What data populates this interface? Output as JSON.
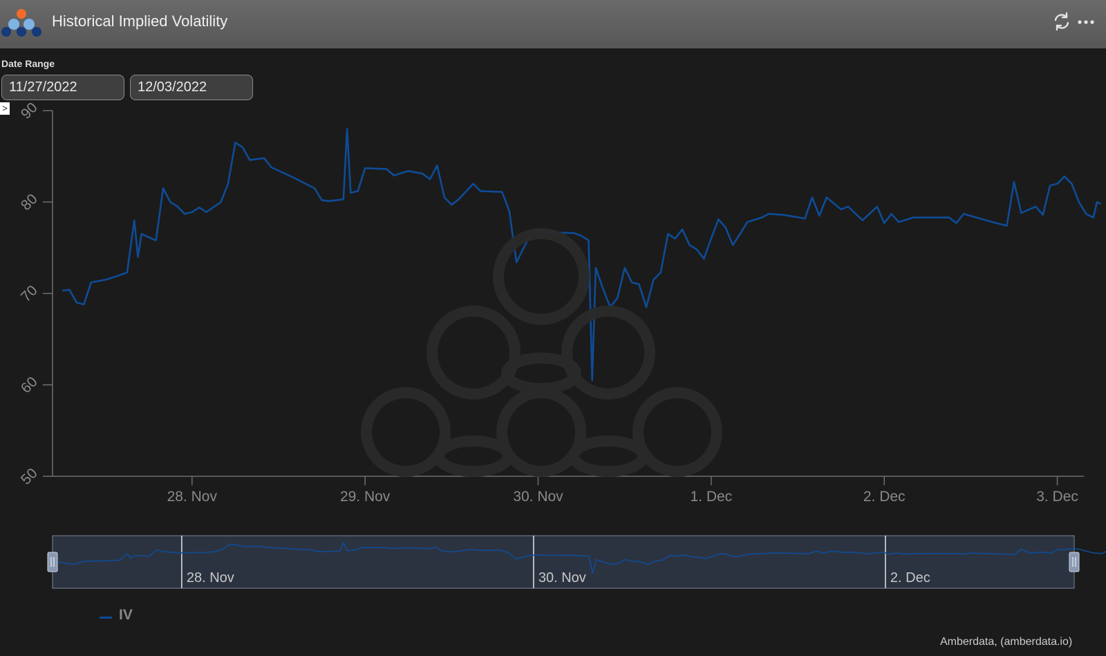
{
  "header": {
    "title": "Historical Implied Volatility",
    "icons": [
      "logo-icon",
      "refresh-icon",
      "more-icon"
    ]
  },
  "date_range": {
    "label": "Date Range",
    "from": "11/27/2022",
    "to": "12/03/2022"
  },
  "colors": {
    "series": "#0e4c97",
    "background": "#1b1b1b",
    "axis": "#6e6e6e",
    "navigator_fill": "#2c3340"
  },
  "chart_data": {
    "type": "line",
    "title": "",
    "xlabel": "",
    "ylabel": "",
    "ylim": [
      50,
      90
    ],
    "yticks": [
      50,
      60,
      70,
      80,
      90
    ],
    "xlim": [
      "2022-11-27T06:00",
      "2022-12-03T01:00"
    ],
    "xtick_labels": [
      "28. Nov",
      "29. Nov",
      "30. Nov",
      "1. Dec",
      "2. Dec",
      "3. Dec"
    ],
    "grid": false,
    "legend_position": "bottom-left",
    "series": [
      {
        "name": "IV",
        "points": [
          [
            "2022-11-27T06:00",
            70.3
          ],
          [
            "2022-11-27T07:00",
            70.4
          ],
          [
            "2022-11-27T08:00",
            69.0
          ],
          [
            "2022-11-27T09:00",
            68.8
          ],
          [
            "2022-11-27T10:00",
            71.2
          ],
          [
            "2022-11-27T12:00",
            71.5
          ],
          [
            "2022-11-27T14:00",
            72.0
          ],
          [
            "2022-11-27T15:00",
            72.3
          ],
          [
            "2022-11-27T16:00",
            78.0
          ],
          [
            "2022-11-27T16:30",
            74.0
          ],
          [
            "2022-11-27T17:00",
            76.5
          ],
          [
            "2022-11-27T19:00",
            75.8
          ],
          [
            "2022-11-27T20:00",
            81.5
          ],
          [
            "2022-11-27T21:00",
            80.0
          ],
          [
            "2022-11-27T22:00",
            79.5
          ],
          [
            "2022-11-27T23:00",
            78.7
          ],
          [
            "2022-11-28T00:00",
            78.9
          ],
          [
            "2022-11-28T01:00",
            79.4
          ],
          [
            "2022-11-28T02:00",
            78.9
          ],
          [
            "2022-11-28T04:00",
            80.0
          ],
          [
            "2022-11-28T05:00",
            82.0
          ],
          [
            "2022-11-28T06:00",
            86.5
          ],
          [
            "2022-11-28T07:00",
            86.0
          ],
          [
            "2022-11-28T08:00",
            84.6
          ],
          [
            "2022-11-28T10:00",
            84.8
          ],
          [
            "2022-11-28T11:00",
            83.8
          ],
          [
            "2022-11-28T14:00",
            82.7
          ],
          [
            "2022-11-28T17:00",
            81.5
          ],
          [
            "2022-11-28T18:00",
            80.2
          ],
          [
            "2022-11-28T19:00",
            80.1
          ],
          [
            "2022-11-28T21:00",
            80.3
          ],
          [
            "2022-11-28T21:30",
            88.0
          ],
          [
            "2022-11-28T22:00",
            81.0
          ],
          [
            "2022-11-28T23:00",
            81.2
          ],
          [
            "2022-11-29T00:00",
            83.7
          ],
          [
            "2022-11-29T03:00",
            83.6
          ],
          [
            "2022-11-29T04:00",
            82.9
          ],
          [
            "2022-11-29T06:00",
            83.4
          ],
          [
            "2022-11-29T08:00",
            83.1
          ],
          [
            "2022-11-29T09:00",
            82.5
          ],
          [
            "2022-11-29T10:00",
            84.0
          ],
          [
            "2022-11-29T11:00",
            80.5
          ],
          [
            "2022-11-29T12:00",
            79.7
          ],
          [
            "2022-11-29T13:00",
            80.3
          ],
          [
            "2022-11-29T15:00",
            82.0
          ],
          [
            "2022-11-29T16:00",
            81.2
          ],
          [
            "2022-11-29T19:00",
            81.1
          ],
          [
            "2022-11-29T20:00",
            79.0
          ],
          [
            "2022-11-29T21:00",
            73.4
          ],
          [
            "2022-11-29T22:00",
            75.0
          ],
          [
            "2022-11-29T23:00",
            76.5
          ],
          [
            "2022-11-30T00:00",
            77.0
          ],
          [
            "2022-11-30T01:00",
            76.7
          ],
          [
            "2022-11-30T05:00",
            76.6
          ],
          [
            "2022-11-30T06:00",
            76.3
          ],
          [
            "2022-11-30T07:00",
            75.8
          ],
          [
            "2022-11-30T07:30",
            60.5
          ],
          [
            "2022-11-30T08:00",
            72.8
          ],
          [
            "2022-11-30T09:00",
            70.5
          ],
          [
            "2022-11-30T10:00",
            68.5
          ],
          [
            "2022-11-30T11:00",
            69.5
          ],
          [
            "2022-11-30T12:00",
            72.8
          ],
          [
            "2022-11-30T13:00",
            71.2
          ],
          [
            "2022-11-30T14:00",
            71.0
          ],
          [
            "2022-11-30T15:00",
            68.5
          ],
          [
            "2022-11-30T16:00",
            71.5
          ],
          [
            "2022-11-30T17:00",
            72.3
          ],
          [
            "2022-11-30T18:00",
            76.5
          ],
          [
            "2022-11-30T19:00",
            76.0
          ],
          [
            "2022-11-30T20:00",
            77.0
          ],
          [
            "2022-11-30T21:00",
            75.3
          ],
          [
            "2022-11-30T22:00",
            74.8
          ],
          [
            "2022-11-30T23:00",
            73.8
          ],
          [
            "2022-12-01T00:00",
            76.0
          ],
          [
            "2022-12-01T01:00",
            78.1
          ],
          [
            "2022-12-01T02:00",
            77.2
          ],
          [
            "2022-12-01T03:00",
            75.3
          ],
          [
            "2022-12-01T04:00",
            76.5
          ],
          [
            "2022-12-01T05:00",
            77.8
          ],
          [
            "2022-12-01T07:00",
            78.3
          ],
          [
            "2022-12-01T08:00",
            78.7
          ],
          [
            "2022-12-01T10:00",
            78.6
          ],
          [
            "2022-12-01T13:00",
            78.2
          ],
          [
            "2022-12-01T14:00",
            80.5
          ],
          [
            "2022-12-01T15:00",
            78.5
          ],
          [
            "2022-12-01T16:00",
            80.5
          ],
          [
            "2022-12-01T18:00",
            79.2
          ],
          [
            "2022-12-01T19:00",
            79.5
          ],
          [
            "2022-12-01T21:00",
            78.0
          ],
          [
            "2022-12-01T23:00",
            79.5
          ],
          [
            "2022-12-02T00:00",
            77.7
          ],
          [
            "2022-12-02T01:00",
            78.7
          ],
          [
            "2022-12-02T02:00",
            77.8
          ],
          [
            "2022-12-02T04:00",
            78.3
          ],
          [
            "2022-12-02T09:00",
            78.3
          ],
          [
            "2022-12-02T10:00",
            77.7
          ],
          [
            "2022-12-02T11:00",
            78.7
          ],
          [
            "2022-12-02T15:00",
            77.8
          ],
          [
            "2022-12-02T17:00",
            77.4
          ],
          [
            "2022-12-02T18:00",
            82.2
          ],
          [
            "2022-12-02T19:00",
            78.8
          ],
          [
            "2022-12-02T21:00",
            79.5
          ],
          [
            "2022-12-02T22:00",
            78.6
          ],
          [
            "2022-12-02T23:00",
            81.8
          ],
          [
            "2022-12-03T00:00",
            82.0
          ],
          [
            "2022-12-03T01:00",
            82.8
          ],
          [
            "2022-12-03T02:00",
            82.0
          ],
          [
            "2022-12-03T03:00",
            80.0
          ],
          [
            "2022-12-03T04:00",
            78.7
          ],
          [
            "2022-12-03T05:00",
            78.3
          ],
          [
            "2022-12-03T05:30",
            80.0
          ],
          [
            "2022-12-03T06:00",
            79.8
          ]
        ]
      }
    ],
    "navigator": {
      "tick_labels": [
        "28. Nov",
        "30. Nov",
        "2. Dec"
      ]
    }
  },
  "legend": {
    "label": "IV"
  },
  "credits": "Amberdata, (amberdata.io)"
}
